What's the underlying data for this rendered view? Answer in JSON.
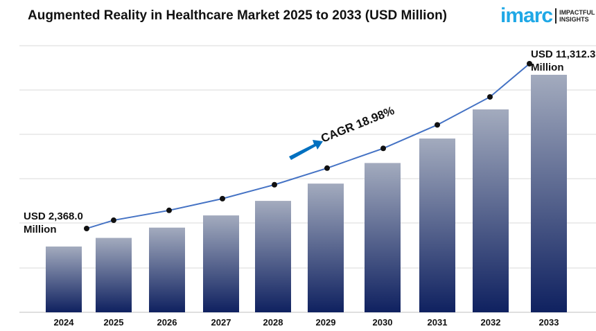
{
  "title": "Augmented Reality in Healthcare Market 2025 to 2033 (USD Million)",
  "logo": {
    "word": "imarc",
    "tag1": "IMPACTFUL",
    "tag2": "INSIGHTS"
  },
  "chart_data": {
    "type": "bar",
    "title": "Augmented Reality in Healthcare Market 2025 to 2033 (USD Million)",
    "categories": [
      "2024",
      "2025",
      "2026",
      "2027",
      "2028",
      "2029",
      "2030",
      "2031",
      "2032",
      "2033"
    ],
    "values": [
      2368.0,
      2817.4,
      3352.2,
      3988.4,
      4745.4,
      5646.0,
      6717.6,
      7992.5,
      9509.5,
      11312.3
    ],
    "overlay_line": true,
    "annotations": {
      "start": "USD 2,368.0",
      "start2": "Million",
      "end": "USD 11,312.3",
      "end2": "Million",
      "cagr": "CAGR 18.98%"
    },
    "grid": true,
    "xlabel": "",
    "ylabel": ""
  }
}
